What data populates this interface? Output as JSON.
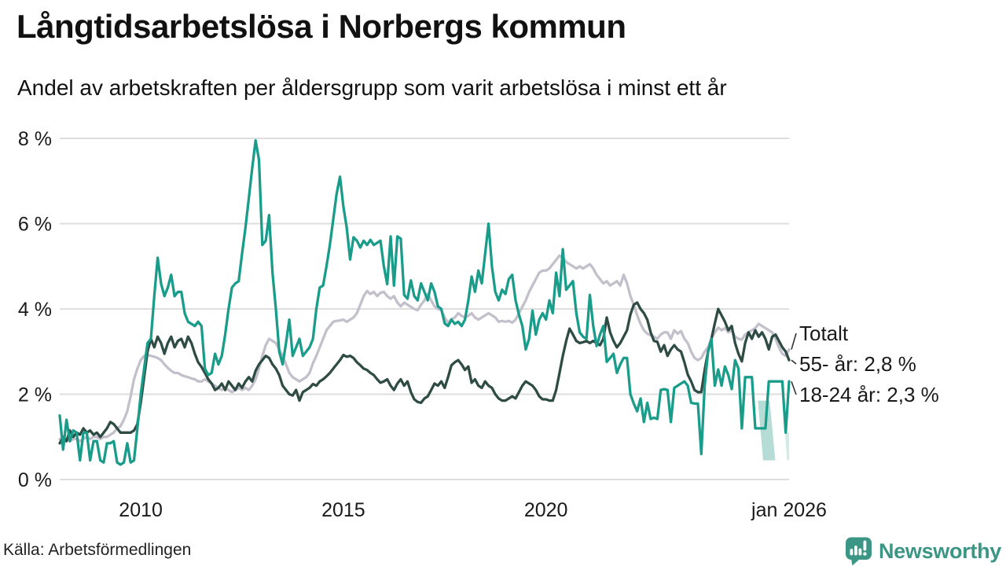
{
  "header": {
    "title": "Långtidsarbetslösa i Norbergs kommun",
    "subtitle": "Andel av arbetskraften per åldersgrupp som varit arbetslösa i minst ett år"
  },
  "footer": {
    "source": "Källa: Arbetsförmedlingen",
    "brand": "Newsworthy",
    "brand_color": "#3C9685"
  },
  "colors": {
    "teal_line": "#1A9C8B",
    "dark_line": "#2E4C44",
    "gray_line": "#C3C0CC",
    "band_fill": "#A9D6CF",
    "gridline": "#DEDEDE",
    "text": "#1A1A1A",
    "connector": "#333333"
  },
  "chart_data": {
    "type": "line",
    "title": "Långtidsarbetslösa i Norbergs kommun",
    "subtitle": "Andel av arbetskraften per åldersgrupp som varit arbetslösa i minst ett år",
    "xlabel": "",
    "ylabel": "",
    "x_unit": "month",
    "x_start": 2008.0,
    "x_end": 2026.0,
    "ylim": [
      0,
      8
    ],
    "grid": true,
    "legend_position": "right-end-labels",
    "yticks": [
      {
        "v": 0,
        "label": "0 %"
      },
      {
        "v": 2,
        "label": "2 %"
      },
      {
        "v": 4,
        "label": "4 %"
      },
      {
        "v": 6,
        "label": "6 %"
      },
      {
        "v": 8,
        "label": "8 %"
      }
    ],
    "xticks": [
      {
        "t": 2010,
        "label": "2010"
      },
      {
        "t": 2015,
        "label": "2015"
      },
      {
        "t": 2020,
        "label": "2020"
      },
      {
        "t": 2026,
        "label": "jan 2026"
      }
    ],
    "series": [
      {
        "name": "Totalt",
        "slug": "totalt",
        "end_label": "Totalt",
        "color": "#C3C0CC",
        "values": [
          0.95,
          0.9,
          0.95,
          0.9,
          0.95,
          0.95,
          0.9,
          0.95,
          1.0,
          0.95,
          1.0,
          1.0,
          0.95,
          1.0,
          1.0,
          1.05,
          1.1,
          1.2,
          1.25,
          1.4,
          1.6,
          1.95,
          2.35,
          2.6,
          2.8,
          2.9,
          2.92,
          2.9,
          2.88,
          2.85,
          2.8,
          2.7,
          2.62,
          2.55,
          2.5,
          2.5,
          2.45,
          2.42,
          2.4,
          2.37,
          2.35,
          2.3,
          2.3,
          2.35,
          2.3,
          2.25,
          2.2,
          2.15,
          2.1,
          2.15,
          2.1,
          2.05,
          2.1,
          2.15,
          2.1,
          2.15,
          2.1,
          2.2,
          2.35,
          2.6,
          2.9,
          3.15,
          3.3,
          3.25,
          3.2,
          3.05,
          2.9,
          2.7,
          2.5,
          2.4,
          2.35,
          2.3,
          2.35,
          2.4,
          2.5,
          2.73,
          2.9,
          3.1,
          3.3,
          3.5,
          3.6,
          3.7,
          3.72,
          3.73,
          3.75,
          3.7,
          3.75,
          3.8,
          3.9,
          4.1,
          4.3,
          4.42,
          4.35,
          4.4,
          4.3,
          4.38,
          4.4,
          4.3,
          4.24,
          4.3,
          4.15,
          4.06,
          4.15,
          4.1,
          4.05,
          4.0,
          3.97,
          4.1,
          4.2,
          4.35,
          4.2,
          4.06,
          4.0,
          3.97,
          3.8,
          3.67,
          3.76,
          3.8,
          3.9,
          3.84,
          3.8,
          3.84,
          3.9,
          3.8,
          3.75,
          3.8,
          3.85,
          3.9,
          3.85,
          3.8,
          3.7,
          3.72,
          3.7,
          3.72,
          3.68,
          3.75,
          3.9,
          4.05,
          4.2,
          4.4,
          4.55,
          4.7,
          4.85,
          4.9,
          4.9,
          4.95,
          5.05,
          5.15,
          5.25,
          5.2,
          5.1,
          5.05,
          5.0,
          4.95,
          5.0,
          4.95,
          5.0,
          5.05,
          4.95,
          4.8,
          4.7,
          4.6,
          4.65,
          4.55,
          4.6,
          4.65,
          4.55,
          4.8,
          4.6,
          4.3,
          4.1,
          3.85,
          3.65,
          3.5,
          3.42,
          3.38,
          3.35,
          3.3,
          3.4,
          3.45,
          3.45,
          3.3,
          3.5,
          3.42,
          3.48,
          3.3,
          3.2,
          3.0,
          2.85,
          2.8,
          2.85,
          3.0,
          3.1,
          3.3,
          3.45,
          3.56,
          3.5,
          3.55,
          3.45,
          3.5,
          3.35,
          3.3,
          3.28,
          3.4,
          3.45,
          3.5,
          3.55,
          3.65,
          3.6,
          3.55,
          3.5,
          3.45,
          3.3,
          3.1,
          2.95,
          2.9,
          3.05
        ]
      },
      {
        "name": "55- år",
        "slug": "55-ar",
        "end_label": "55- år: 2,8 %",
        "color": "#2E4C44",
        "values": [
          0.85,
          1.0,
          0.9,
          1.15,
          1.0,
          1.1,
          1.05,
          1.2,
          1.1,
          1.15,
          1.05,
          1.1,
          1.0,
          1.1,
          1.2,
          1.35,
          1.3,
          1.2,
          1.1,
          1.1,
          1.1,
          1.1,
          1.15,
          1.3,
          1.8,
          2.4,
          3.0,
          3.3,
          3.1,
          3.35,
          3.2,
          2.95,
          3.2,
          3.35,
          3.1,
          3.25,
          3.3,
          3.1,
          3.35,
          3.2,
          2.95,
          2.75,
          2.64,
          2.5,
          2.35,
          2.25,
          2.1,
          2.15,
          2.25,
          2.1,
          2.3,
          2.2,
          2.1,
          2.25,
          2.15,
          2.3,
          2.4,
          2.3,
          2.55,
          2.7,
          2.8,
          2.9,
          2.85,
          2.7,
          2.6,
          2.45,
          2.2,
          2.1,
          2.0,
          1.97,
          2.1,
          1.85,
          2.05,
          2.1,
          2.15,
          2.24,
          2.2,
          2.3,
          2.35,
          2.42,
          2.5,
          2.6,
          2.7,
          2.8,
          2.92,
          2.88,
          2.9,
          2.85,
          2.75,
          2.68,
          2.6,
          2.57,
          2.5,
          2.45,
          2.35,
          2.27,
          2.3,
          2.35,
          2.2,
          2.1,
          2.25,
          2.35,
          2.2,
          2.3,
          2.05,
          1.88,
          1.82,
          1.8,
          1.9,
          1.95,
          2.1,
          2.25,
          2.2,
          2.3,
          2.15,
          2.4,
          2.68,
          2.75,
          2.8,
          2.7,
          2.57,
          2.65,
          2.27,
          2.35,
          2.2,
          2.15,
          2.3,
          2.2,
          2.15,
          2.0,
          1.9,
          1.85,
          1.85,
          1.9,
          1.95,
          1.9,
          2.05,
          2.2,
          2.3,
          2.25,
          2.2,
          2.1,
          1.95,
          1.88,
          1.88,
          1.85,
          1.85,
          2.1,
          2.5,
          2.9,
          3.25,
          3.54,
          3.4,
          3.25,
          3.2,
          3.22,
          3.25,
          3.2,
          3.25,
          3.2,
          3.15,
          3.3,
          3.8,
          3.45,
          3.25,
          3.1,
          3.2,
          3.35,
          3.5,
          3.87,
          4.1,
          4.15,
          4.0,
          3.9,
          3.75,
          3.45,
          3.25,
          3.23,
          3.0,
          3.15,
          2.9,
          3.05,
          3.15,
          3.05,
          3.0,
          2.75,
          2.46,
          2.3,
          2.1,
          2.05,
          2.05,
          2.57,
          3.0,
          3.3,
          3.66,
          4.0,
          3.85,
          3.7,
          3.5,
          3.6,
          3.2,
          2.95,
          2.77,
          3.2,
          3.45,
          3.3,
          3.5,
          3.35,
          3.45,
          3.3,
          3.05,
          3.35,
          3.4,
          3.25,
          3.1,
          3.0,
          2.8
        ]
      },
      {
        "name": "18-24 år",
        "slug": "18-24-ar",
        "end_label": "18-24 år: 2,3 %",
        "color": "#1A9C8B",
        "values": [
          1.5,
          0.7,
          1.4,
          0.9,
          1.15,
          1.1,
          0.45,
          1.1,
          1.1,
          0.45,
          0.9,
          0.9,
          0.45,
          0.4,
          0.85,
          0.85,
          0.9,
          0.4,
          0.35,
          0.4,
          0.85,
          0.4,
          0.45,
          1.2,
          2.0,
          2.6,
          3.2,
          3.3,
          4.3,
          5.2,
          4.6,
          4.3,
          4.5,
          4.8,
          4.3,
          4.4,
          4.4,
          3.9,
          3.7,
          3.65,
          3.6,
          3.7,
          3.6,
          2.6,
          2.45,
          2.5,
          2.95,
          2.7,
          2.9,
          3.4,
          4.0,
          4.5,
          4.6,
          4.65,
          5.3,
          5.9,
          6.6,
          7.3,
          7.95,
          7.5,
          5.5,
          5.6,
          6.2,
          4.85,
          4.0,
          3.0,
          2.7,
          3.2,
          3.75,
          2.9,
          3.1,
          3.3,
          2.9,
          3.0,
          3.1,
          3.3,
          4.0,
          4.5,
          4.55,
          5.0,
          5.5,
          6.1,
          6.7,
          7.1,
          6.4,
          5.9,
          5.16,
          5.68,
          5.6,
          5.44,
          5.6,
          5.5,
          5.62,
          5.5,
          5.55,
          5.6,
          5.0,
          4.58,
          5.7,
          4.55,
          5.7,
          5.65,
          4.33,
          4.24,
          4.67,
          4.3,
          4.2,
          4.6,
          4.4,
          4.2,
          4.6,
          4.4,
          4.06,
          4.0,
          3.66,
          3.6,
          3.75,
          3.65,
          3.7,
          3.6,
          3.75,
          4.2,
          4.76,
          4.4,
          4.9,
          4.6,
          5.3,
          6.0,
          5.0,
          4.4,
          4.2,
          4.45,
          4.35,
          4.7,
          4.8,
          4.2,
          3.87,
          3.6,
          3.05,
          3.3,
          3.96,
          3.4,
          3.75,
          3.9,
          3.75,
          4.2,
          3.9,
          4.85,
          4.3,
          5.4,
          4.45,
          4.55,
          4.65,
          3.9,
          3.45,
          3.35,
          3.3,
          4.33,
          3.6,
          3.13,
          3.4,
          3.6,
          2.76,
          2.85,
          2.95,
          2.5,
          2.7,
          2.85,
          2.85,
          2.0,
          1.78,
          1.6,
          1.9,
          1.35,
          1.8,
          1.42,
          1.45,
          1.42,
          2.1,
          2.12,
          2.1,
          1.35,
          2.15,
          2.2,
          2.25,
          2.3,
          2.2,
          1.8,
          1.78,
          1.78,
          0.6,
          2.2,
          3.0,
          3.3,
          2.2,
          2.58,
          2.2,
          2.65,
          2.45,
          2.12,
          2.8,
          2.6,
          1.2,
          2.4,
          2.4,
          2.4,
          1.2,
          1.2,
          1.2,
          1.2,
          2.3,
          2.3,
          2.3,
          2.3,
          2.3,
          1.1,
          2.3
        ]
      }
    ],
    "uncertainty_bands": [
      {
        "points": [
          [
            2025.23,
            1.85
          ],
          [
            2025.52,
            1.85
          ],
          [
            2025.66,
            0.45
          ],
          [
            2025.36,
            0.45
          ]
        ],
        "opacity": 0.85
      },
      {
        "points": [
          [
            2025.9,
            1.1
          ],
          [
            2026.0,
            1.1
          ],
          [
            2026.0,
            0.45
          ],
          [
            2025.95,
            0.45
          ]
        ],
        "opacity": 0.5
      }
    ]
  }
}
